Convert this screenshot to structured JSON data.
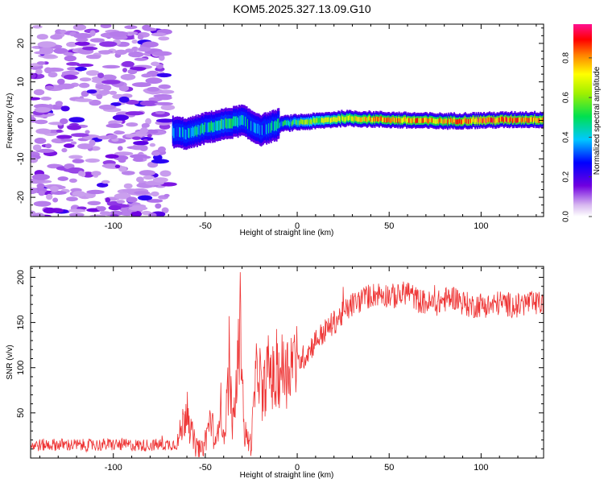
{
  "title": "KOM5.2025.327.13.09.G10",
  "chart_data": [
    {
      "type": "heatmap",
      "name": "spectrogram",
      "xlabel": "Height of straight line (km)",
      "ylabel": "Frequency (Hz)",
      "xlim": [
        -145,
        134
      ],
      "ylim": [
        -25,
        25
      ],
      "xticks": [
        -100,
        -50,
        0,
        50,
        100
      ],
      "yticks": [
        -20,
        -10,
        0,
        10,
        20
      ],
      "xtick_labels": [
        "-100",
        "-50",
        "0",
        "50",
        "100"
      ],
      "ytick_labels": [
        "-20",
        "-10",
        "0",
        "10",
        "20"
      ],
      "colorbar": {
        "label": "Normalized spectral amplitude",
        "range": [
          0,
          0.97
        ],
        "ticks": [
          0,
          0.2,
          0.4,
          0.6,
          0.8
        ],
        "tick_labels": [
          "0.0",
          "0.2",
          "0.4",
          "0.6",
          "0.8"
        ]
      },
      "noise_region_x": [
        -145,
        -70
      ],
      "signal_track": [
        {
          "x": -68,
          "freq": -3.0,
          "amp": 0.3
        },
        {
          "x": -60,
          "freq": -3.5,
          "amp": 0.35
        },
        {
          "x": -50,
          "freq": -2.0,
          "amp": 0.4
        },
        {
          "x": -40,
          "freq": -1.0,
          "amp": 0.45
        },
        {
          "x": -30,
          "freq": 0.0,
          "amp": 0.4
        },
        {
          "x": -25,
          "freq": -1.5,
          "amp": 0.35
        },
        {
          "x": -20,
          "freq": -2.5,
          "amp": 0.3
        },
        {
          "x": -10,
          "freq": -1.0,
          "amp": 0.4
        },
        {
          "x": 0,
          "freq": -0.5,
          "amp": 0.5
        },
        {
          "x": 10,
          "freq": -0.2,
          "amp": 0.6
        },
        {
          "x": 25,
          "freq": 0.5,
          "amp": 0.7
        },
        {
          "x": 40,
          "freq": 0.3,
          "amp": 0.75
        },
        {
          "x": 60,
          "freq": 0.0,
          "amp": 0.8
        },
        {
          "x": 80,
          "freq": -0.2,
          "amp": 0.75
        },
        {
          "x": 100,
          "freq": 0.0,
          "amp": 0.85
        },
        {
          "x": 120,
          "freq": 0.2,
          "amp": 0.8
        },
        {
          "x": 134,
          "freq": 0.2,
          "amp": 0.8
        }
      ]
    },
    {
      "type": "line",
      "name": "snr",
      "xlabel": "Height of straight line (km)",
      "ylabel": "SNR (v/v)",
      "xlim": [
        -145,
        134
      ],
      "ylim": [
        0,
        212
      ],
      "xticks": [
        -100,
        -50,
        0,
        50,
        100
      ],
      "yticks": [
        50,
        100,
        150,
        200
      ],
      "xtick_labels": [
        "-100",
        "-50",
        "0",
        "50",
        "100"
      ],
      "ytick_labels": [
        "50",
        "100",
        "150",
        "200"
      ],
      "color": "#ee3333",
      "series": [
        {
          "name": "SNR",
          "x": [
            -145,
            -130,
            -115,
            -100,
            -85,
            -70,
            -65,
            -62,
            -60,
            -58,
            -55,
            -52,
            -50,
            -47,
            -44,
            -42,
            -40,
            -37,
            -35,
            -33,
            -31,
            -30,
            -29,
            -27,
            -25,
            -23,
            -21,
            -19,
            -17,
            -15,
            -12,
            -9,
            -6,
            -3,
            0,
            5,
            10,
            15,
            20,
            25,
            30,
            35,
            40,
            45,
            50,
            55,
            60,
            65,
            70,
            75,
            80,
            85,
            90,
            95,
            100,
            105,
            110,
            115,
            120,
            125,
            130,
            134
          ],
          "values": [
            14,
            15,
            14,
            15,
            14,
            15,
            16,
            40,
            55,
            30,
            12,
            8,
            20,
            45,
            10,
            70,
            18,
            95,
            35,
            80,
            150,
            120,
            30,
            20,
            15,
            75,
            110,
            60,
            90,
            100,
            80,
            100,
            95,
            110,
            105,
            115,
            130,
            140,
            150,
            160,
            170,
            175,
            180,
            182,
            180,
            178,
            185,
            175,
            172,
            170,
            175,
            178,
            172,
            168,
            170,
            168,
            172,
            170,
            168,
            172,
            170,
            172
          ]
        }
      ]
    }
  ]
}
